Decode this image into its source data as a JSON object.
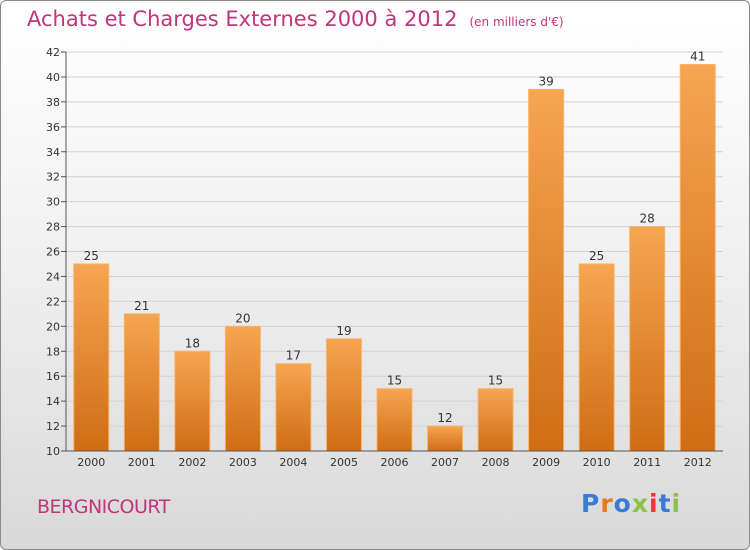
{
  "header": {
    "title": "Achats et Charges Externes 2000 à 2012",
    "unit": "(en milliers d'€)"
  },
  "footer": {
    "place": "BERGNICOURT",
    "logo": "Proxiti"
  },
  "colors": {
    "title": "#c0367a",
    "bar_light": "#f6a552",
    "bar_dark": "#cf6d14",
    "logo_letters": [
      "#3a7bd5",
      "#e87a1e",
      "#3a7bd5",
      "#8bc34a",
      "#e53935",
      "#3a7bd5",
      "#8bc34a"
    ]
  },
  "chart_data": {
    "type": "bar",
    "categories": [
      "2000",
      "2001",
      "2002",
      "2003",
      "2004",
      "2005",
      "2006",
      "2007",
      "2008",
      "2009",
      "2010",
      "2011",
      "2012"
    ],
    "values": [
      25,
      21,
      18,
      20,
      17,
      19,
      15,
      12,
      15,
      39,
      25,
      28,
      41
    ],
    "ylim": [
      10,
      42
    ],
    "yticks": [
      10,
      12,
      14,
      16,
      18,
      20,
      22,
      24,
      26,
      28,
      30,
      32,
      34,
      36,
      38,
      40,
      42
    ],
    "grid": true,
    "data_labels": true
  }
}
